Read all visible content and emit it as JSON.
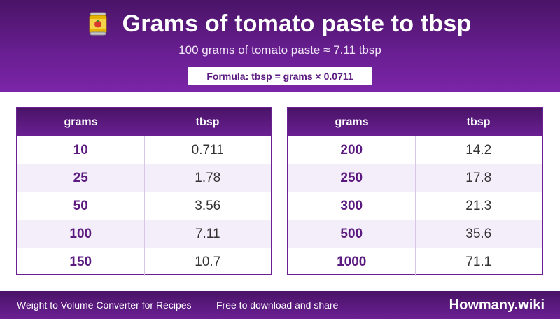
{
  "header": {
    "title": "Grams of tomato paste to tbsp",
    "subtitle": "100 grams of tomato paste ≈ 7.11 tbsp",
    "formula": "Formula: tbsp = grams × 0.0711",
    "icon": "tomato-paste-can-icon"
  },
  "table_left": {
    "col_grams": "grams",
    "col_tbsp": "tbsp",
    "rows": [
      {
        "grams": "10",
        "tbsp": "0.711"
      },
      {
        "grams": "25",
        "tbsp": "1.78"
      },
      {
        "grams": "50",
        "tbsp": "3.56"
      },
      {
        "grams": "100",
        "tbsp": "7.11"
      },
      {
        "grams": "150",
        "tbsp": "10.7"
      }
    ]
  },
  "table_right": {
    "col_grams": "grams",
    "col_tbsp": "tbsp",
    "rows": [
      {
        "grams": "200",
        "tbsp": "14.2"
      },
      {
        "grams": "250",
        "tbsp": "17.8"
      },
      {
        "grams": "300",
        "tbsp": "21.3"
      },
      {
        "grams": "500",
        "tbsp": "35.6"
      },
      {
        "grams": "1000",
        "tbsp": "71.1"
      }
    ]
  },
  "footer": {
    "tagline": "Weight to Volume Converter for Recipes",
    "note": "Free to download and share",
    "brand": "Howmany.wiki"
  },
  "colors": {
    "accent": "#6a1f93",
    "accent_dark": "#4a1467",
    "row_alt": "#f4eefa"
  }
}
